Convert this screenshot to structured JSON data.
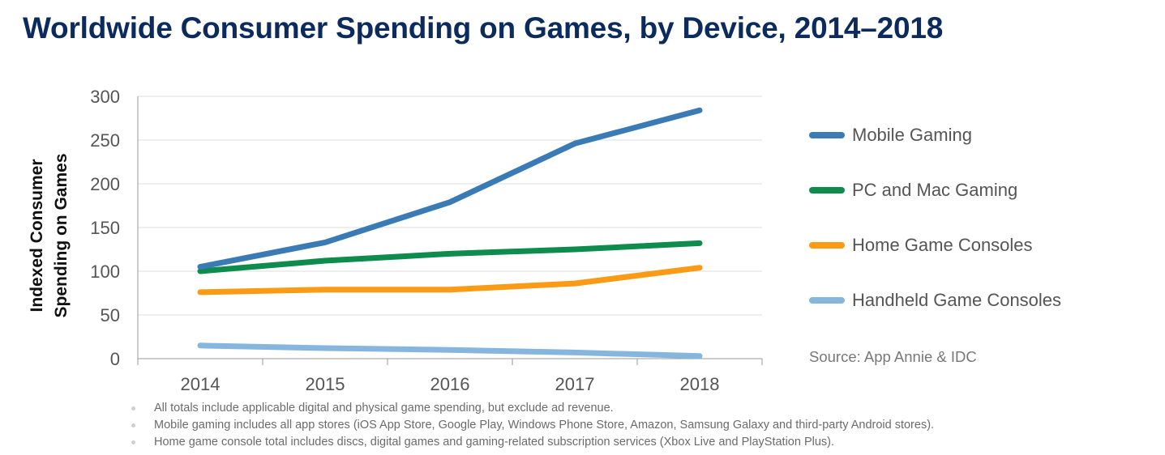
{
  "title": "Worldwide Consumer Spending on Games, by Device, 2014–2018",
  "source": "Source: App Annie & IDC",
  "notes": [
    "All totals include applicable digital and physical game spending, but exclude ad revenue.",
    "Mobile gaming includes all app stores (iOS App Store, Google Play, Windows Phone Store, Amazon, Samsung Galaxy and third-party Android stores).",
    "Home game console total includes discs, digital games and gaming-related subscription services (Xbox Live and PlayStation Plus)."
  ],
  "chart_data": {
    "type": "line",
    "title": "Worldwide Consumer Spending on Games, by Device, 2014–2018",
    "xlabel": "",
    "ylabel_lines": [
      "Indexed Consumer",
      "Spending on Games"
    ],
    "categories": [
      "2014",
      "2015",
      "2016",
      "2017",
      "2018"
    ],
    "yticks": [
      "0",
      "50",
      "100",
      "150",
      "200",
      "250",
      "300"
    ],
    "ylim": [
      0,
      300
    ],
    "grid": true,
    "legend_position": "right",
    "series": [
      {
        "name": "Mobile Gaming",
        "color": "#3a7ab5",
        "values": [
          105,
          133,
          179,
          246,
          284
        ]
      },
      {
        "name": "PC and Mac Gaming",
        "color": "#0e8c4e",
        "values": [
          100,
          112,
          120,
          125,
          132
        ]
      },
      {
        "name": "Home Game Consoles",
        "color": "#fb9a14",
        "values": [
          76,
          79,
          79,
          86,
          104
        ]
      },
      {
        "name": "Handheld Game Consoles",
        "color": "#86b6de",
        "values": [
          15,
          12,
          10,
          7,
          3
        ]
      }
    ]
  }
}
